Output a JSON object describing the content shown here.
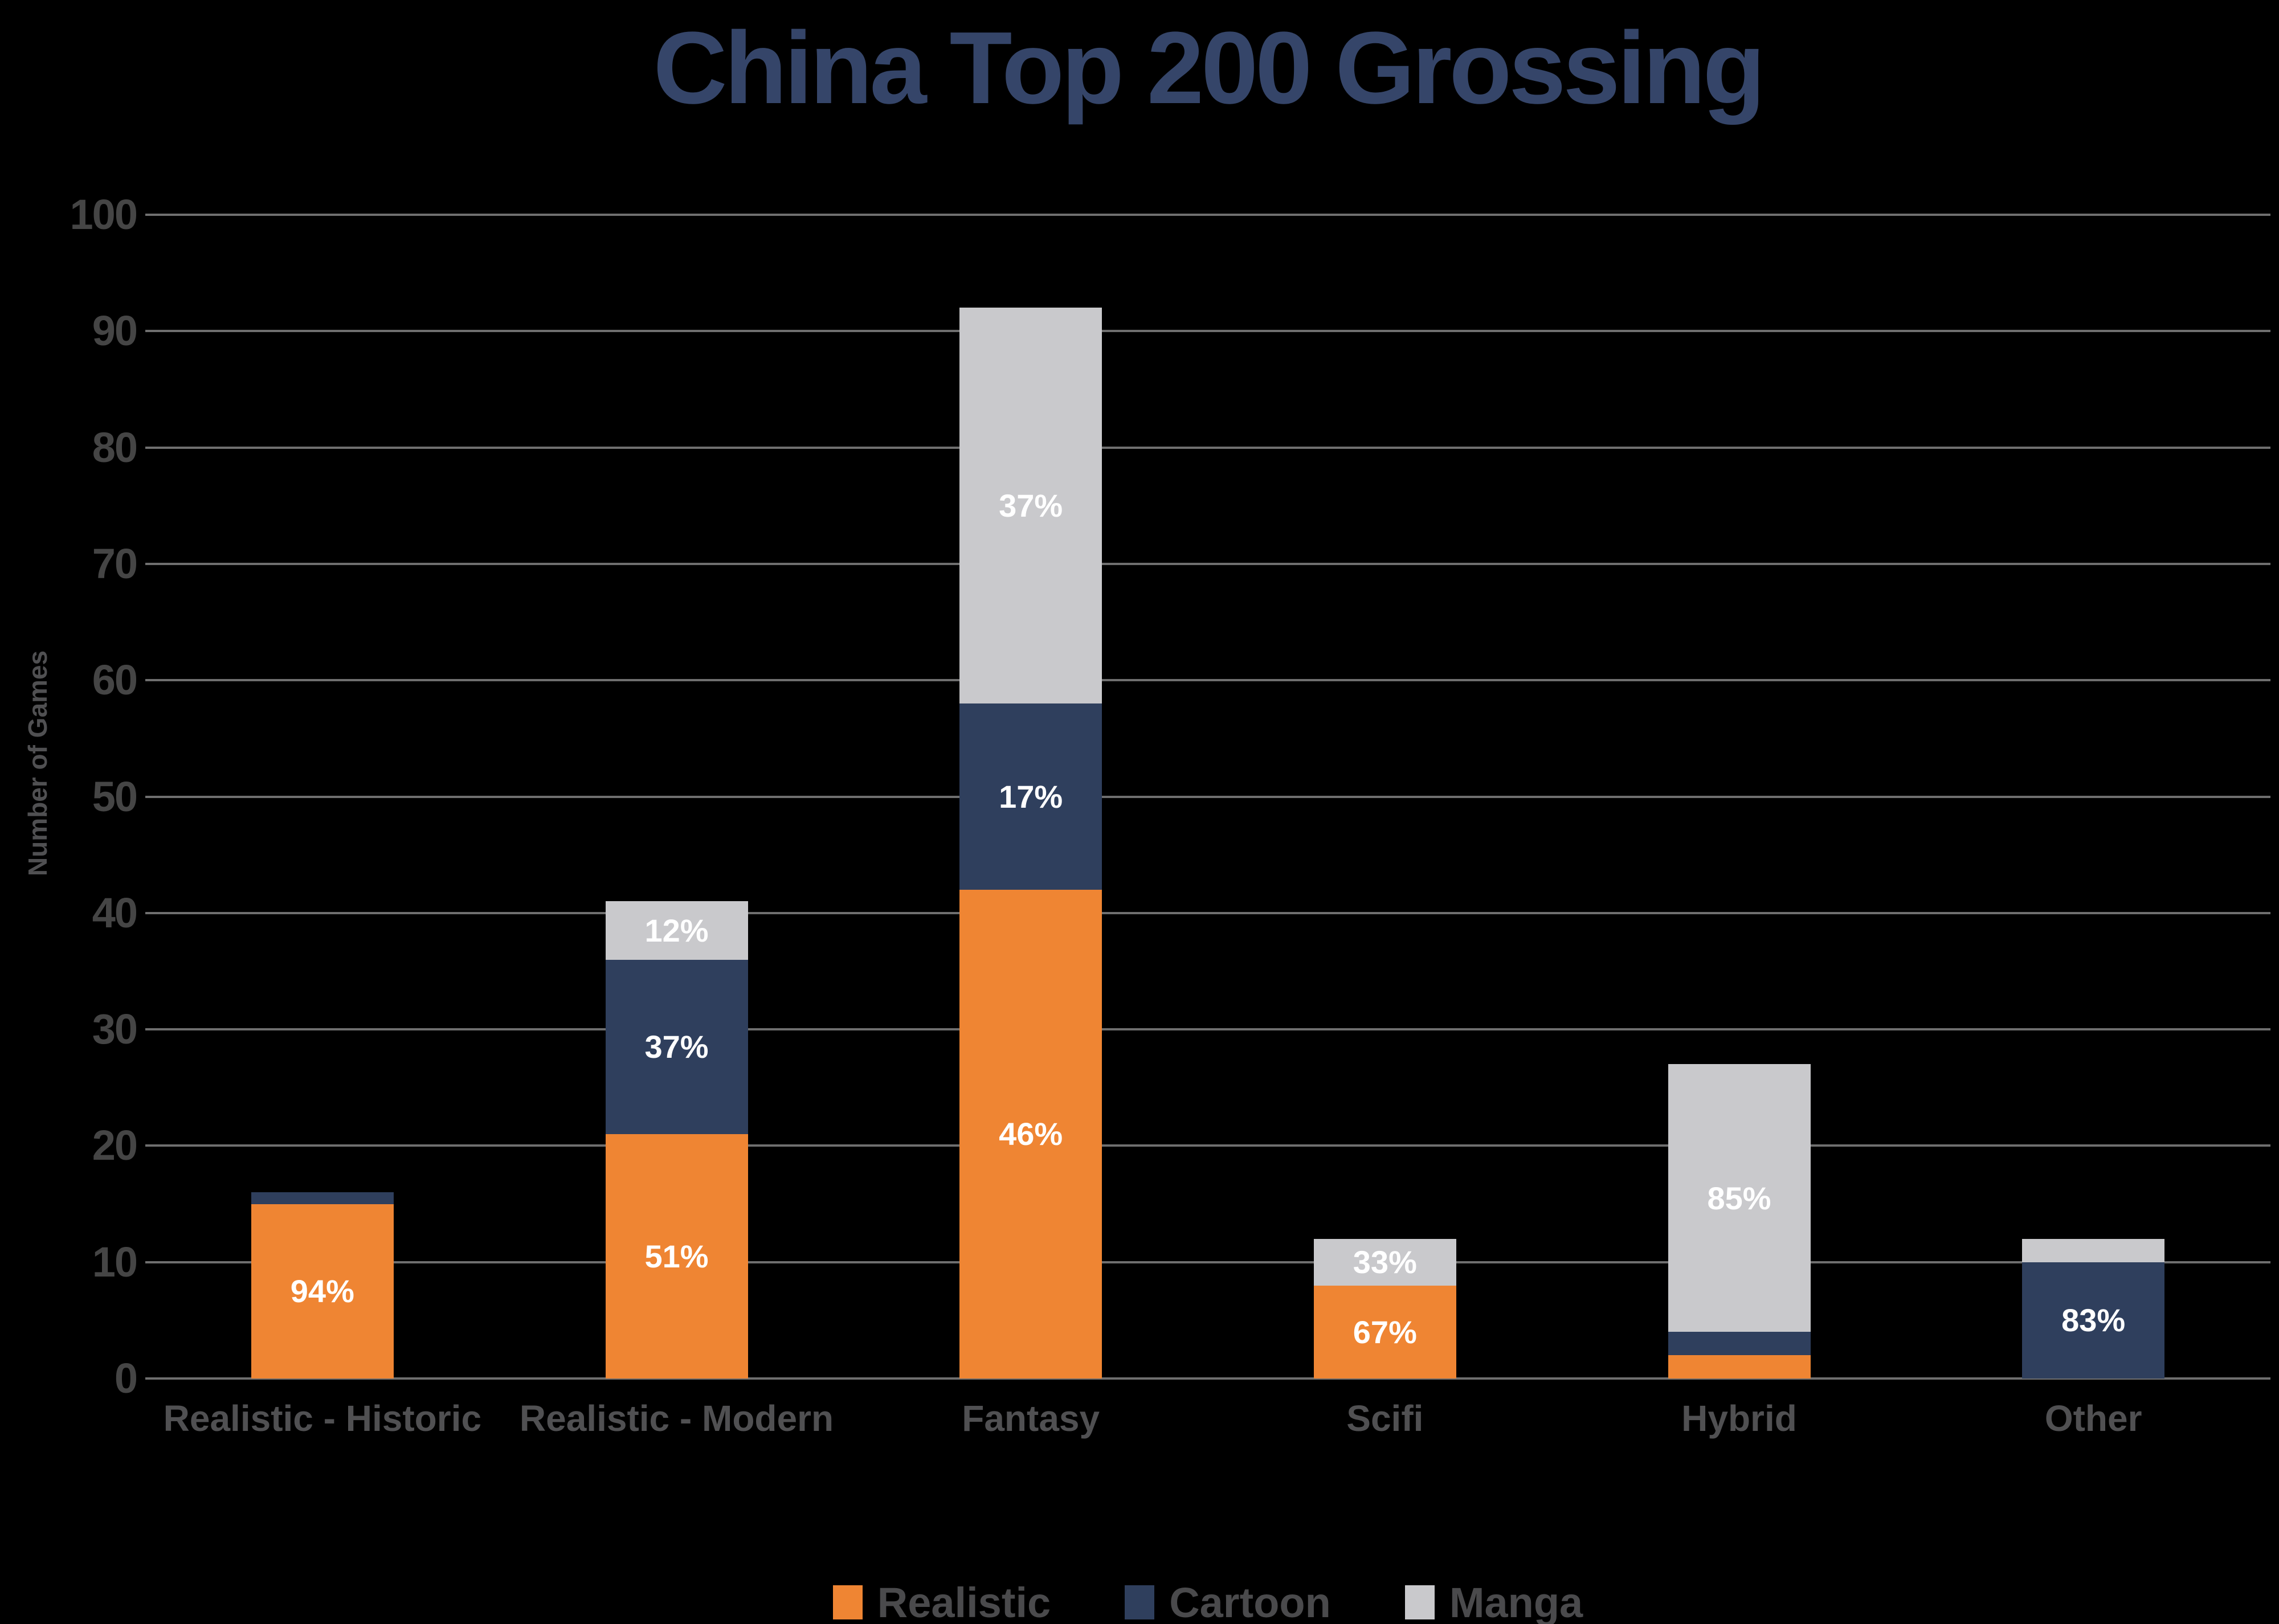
{
  "chart_data": {
    "type": "bar",
    "stacked": true,
    "title": "China Top 200 Grossing",
    "ylabel": "Number of Games",
    "xlabel": "",
    "ylim": [
      0,
      100
    ],
    "ytick_step": 10,
    "grid": true,
    "legend_position": "bottom",
    "categories": [
      "Realistic - Historic",
      "Realistic - Modern",
      "Fantasy",
      "Scifi",
      "Hybrid",
      "Other"
    ],
    "series": [
      {
        "name": "Realistic",
        "color": "#EF8533",
        "values": [
          15,
          21,
          42,
          8,
          2,
          0
        ],
        "labels": [
          "94%",
          "51%",
          "46%",
          "67%",
          null,
          null
        ]
      },
      {
        "name": "Cartoon",
        "color": "#2F3F5D",
        "values": [
          1,
          15,
          16,
          0,
          2,
          10
        ],
        "labels": [
          null,
          "37%",
          "17%",
          null,
          null,
          "83%"
        ]
      },
      {
        "name": "Manga",
        "color": "#C9C9CC",
        "values": [
          0,
          5,
          34,
          4,
          23,
          2
        ],
        "labels": [
          null,
          "12%",
          "37%",
          "33%",
          "85%",
          null
        ]
      }
    ],
    "totals": [
      16,
      41,
      92,
      12,
      27,
      12
    ]
  },
  "colors": {
    "background": "#000000",
    "title": "#354569",
    "grid": "#6F6F6F",
    "y_tick": "#454545",
    "x_label": "#505052",
    "axis_title": "#505052",
    "bar_label": "#FFFFFF",
    "legend_text": "#4A4A4C"
  }
}
